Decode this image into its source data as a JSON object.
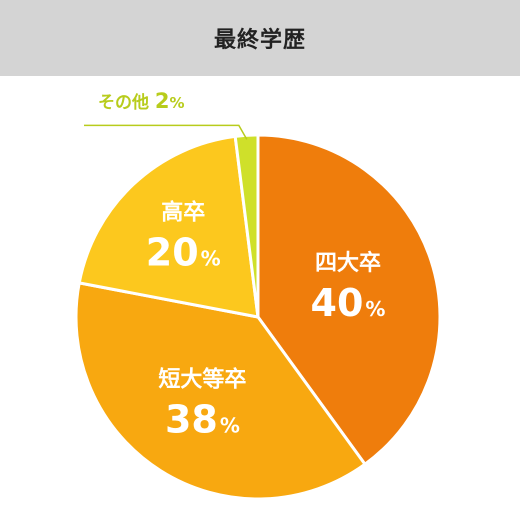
{
  "header": {
    "title": "最終学歴"
  },
  "chart_data": {
    "type": "pie",
    "title": "最終学歴",
    "unit": "%",
    "slices": [
      {
        "label": "四大卒",
        "value": 40,
        "color": "#ef7d0c"
      },
      {
        "label": "短大等卒",
        "value": 38,
        "color": "#f8a810"
      },
      {
        "label": "高卒",
        "value": 20,
        "color": "#fcc81e"
      },
      {
        "label": "その他",
        "value": 2,
        "color": "#cfe02a"
      }
    ],
    "other_label_color": "#b8cc1c"
  }
}
